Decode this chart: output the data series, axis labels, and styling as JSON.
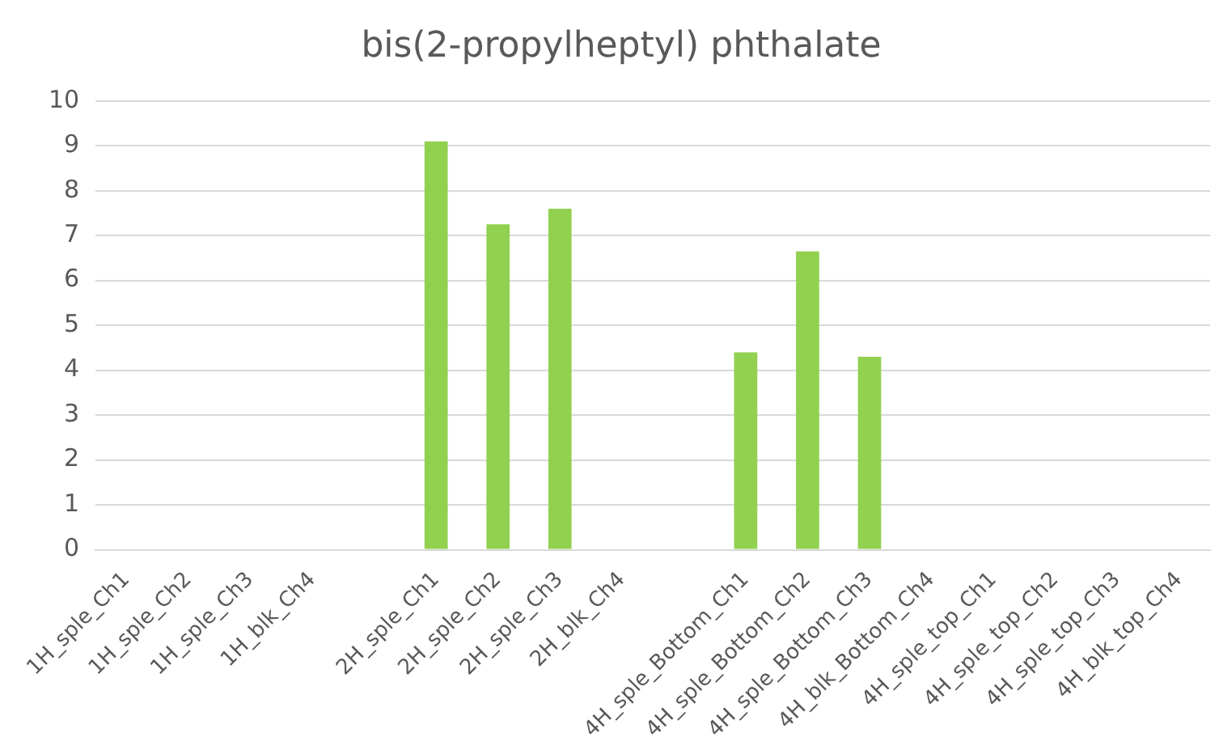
{
  "chart_data": {
    "type": "bar",
    "title": "bis(2-propylheptyl) phthalate",
    "categories": [
      "1H_sple_Ch1",
      "1H_sple_Ch2",
      "1H_sple_Ch3",
      "1H_blk_Ch4",
      null,
      "2H_sple_Ch1",
      "2H_sple_Ch2",
      "2H_sple_Ch3",
      "2H_blk_Ch4",
      null,
      "4H_sple_Bottom_Ch1",
      "4H_sple_Bottom_Ch2",
      "4H_sple_Bottom_Ch3",
      "4H_blk_Bottom_Ch4",
      "4H_sple_top_Ch1",
      "4H_sple_top_Ch2",
      "4H_sple_top_Ch3",
      "4H_blk_top_Ch4"
    ],
    "values": [
      null,
      null,
      null,
      null,
      null,
      9.1,
      7.25,
      7.6,
      null,
      null,
      4.4,
      6.65,
      4.3,
      null,
      null,
      null,
      null,
      null
    ],
    "color": "#92d050",
    "ylim": [
      0,
      10
    ],
    "yticks": [
      0,
      1,
      2,
      3,
      4,
      5,
      6,
      7,
      8,
      9,
      10
    ],
    "grid": "y",
    "legend": false
  }
}
